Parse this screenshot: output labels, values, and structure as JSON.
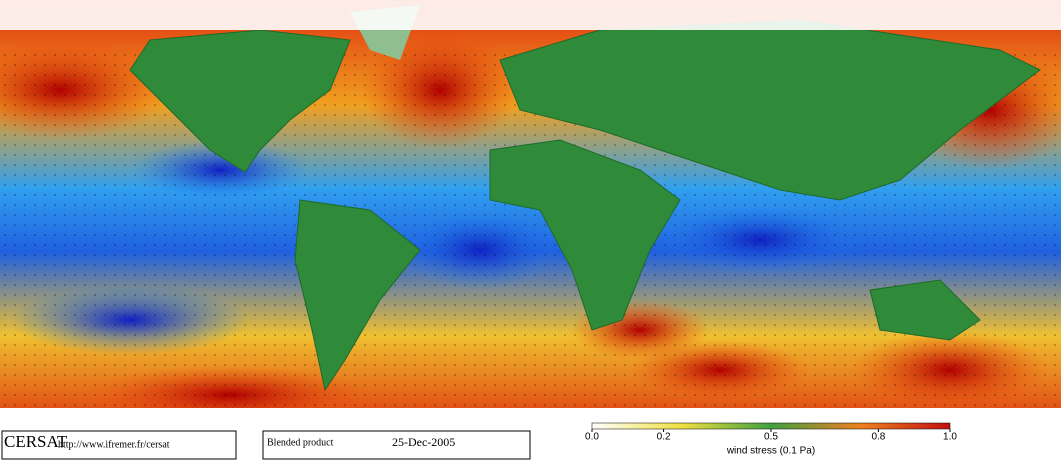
{
  "logo": "CERSAT",
  "url": "http://www.ifremer.fr/cersat",
  "product": "Blended product",
  "date": "25-Dec-2005",
  "colorbar": {
    "label": "wind stress (0.1 Pa)",
    "lim": [
      0,
      1
    ],
    "ticks": [
      {
        "value": 0,
        "label": "0.0"
      },
      0.2,
      0.5,
      0.8,
      {
        "value": 1,
        "label": "1.0"
      }
    ]
  }
}
